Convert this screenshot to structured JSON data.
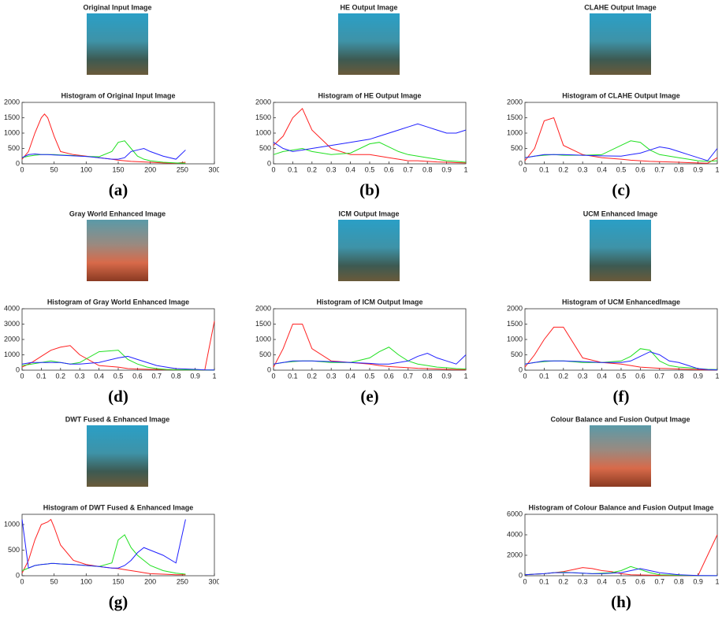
{
  "chart_data": [
    {
      "type": "line",
      "image_title": "Original Input Image",
      "title": "Histogram of Original Input Image",
      "label": "(a)",
      "x": [
        0,
        10,
        20,
        30,
        35,
        40,
        50,
        60,
        80,
        100,
        120,
        140,
        150,
        160,
        170,
        180,
        190,
        200,
        220,
        240,
        255
      ],
      "xlim": [
        0,
        300
      ],
      "xticks": [
        0,
        50,
        100,
        150,
        200,
        250,
        300
      ],
      "ylim": [
        0,
        2000
      ],
      "yticks": [
        0,
        500,
        1000,
        1500,
        2000
      ],
      "series": [
        {
          "color": "#ff2020",
          "values": [
            150,
            400,
            1000,
            1500,
            1620,
            1500,
            900,
            400,
            300,
            250,
            200,
            150,
            120,
            100,
            80,
            70,
            60,
            50,
            30,
            20,
            50
          ]
        },
        {
          "color": "#20e020",
          "values": [
            200,
            250,
            280,
            300,
            300,
            300,
            300,
            290,
            270,
            240,
            230,
            400,
            700,
            750,
            500,
            250,
            150,
            100,
            50,
            30,
            20
          ]
        },
        {
          "color": "#2020ff",
          "values": [
            200,
            300,
            320,
            300,
            300,
            300,
            290,
            280,
            260,
            240,
            200,
            150,
            150,
            200,
            400,
            450,
            500,
            400,
            250,
            150,
            450
          ]
        }
      ]
    },
    {
      "type": "line",
      "image_title": "HE Output Image",
      "title": "Histogram of HE Output Image",
      "label": "(b)",
      "x": [
        0,
        0.05,
        0.1,
        0.15,
        0.2,
        0.3,
        0.4,
        0.5,
        0.55,
        0.6,
        0.65,
        0.7,
        0.75,
        0.8,
        0.85,
        0.9,
        0.95,
        1
      ],
      "xlim": [
        0,
        1
      ],
      "xticks": [
        0,
        0.1,
        0.2,
        0.3,
        0.4,
        0.5,
        0.6,
        0.7,
        0.8,
        0.9,
        1
      ],
      "ylim": [
        0,
        2000
      ],
      "yticks": [
        0,
        500,
        1000,
        1500,
        2000
      ],
      "series": [
        {
          "color": "#ff2020",
          "values": [
            600,
            900,
            1500,
            1800,
            1100,
            500,
            300,
            300,
            250,
            200,
            150,
            100,
            100,
            80,
            60,
            50,
            40,
            30
          ]
        },
        {
          "color": "#20e020",
          "values": [
            300,
            400,
            450,
            500,
            400,
            300,
            350,
            650,
            700,
            550,
            400,
            300,
            250,
            200,
            150,
            100,
            80,
            50
          ]
        },
        {
          "color": "#2020ff",
          "values": [
            700,
            500,
            400,
            450,
            500,
            600,
            700,
            800,
            900,
            1000,
            1100,
            1200,
            1300,
            1200,
            1100,
            1000,
            1000,
            1100
          ]
        }
      ]
    },
    {
      "type": "line",
      "image_title": "CLAHE Output Image",
      "title": "Histogram of CLAHE Output Image",
      "label": "(c)",
      "x": [
        0,
        0.05,
        0.1,
        0.15,
        0.2,
        0.3,
        0.4,
        0.5,
        0.55,
        0.6,
        0.65,
        0.7,
        0.75,
        0.8,
        0.85,
        0.9,
        0.95,
        1
      ],
      "xlim": [
        0,
        1
      ],
      "xticks": [
        0,
        0.1,
        0.2,
        0.3,
        0.4,
        0.5,
        0.6,
        0.7,
        0.8,
        0.9,
        1
      ],
      "ylim": [
        0,
        2000
      ],
      "yticks": [
        0,
        500,
        1000,
        1500,
        2000
      ],
      "series": [
        {
          "color": "#ff2020",
          "values": [
            100,
            500,
            1400,
            1500,
            600,
            300,
            200,
            150,
            120,
            100,
            80,
            70,
            60,
            50,
            40,
            30,
            20,
            200
          ]
        },
        {
          "color": "#20e020",
          "values": [
            200,
            250,
            280,
            300,
            280,
            280,
            300,
            600,
            750,
            700,
            450,
            300,
            250,
            200,
            150,
            100,
            80,
            100
          ]
        },
        {
          "color": "#2020ff",
          "values": [
            200,
            250,
            300,
            300,
            300,
            280,
            260,
            250,
            300,
            350,
            450,
            550,
            500,
            400,
            300,
            200,
            100,
            500
          ]
        }
      ]
    },
    {
      "type": "line",
      "image_title": "Gray World Enhanced Image",
      "title": "Histogram of Gray World Enhanced Image",
      "label": "(d)",
      "x": [
        0,
        0.05,
        0.1,
        0.15,
        0.2,
        0.25,
        0.3,
        0.4,
        0.5,
        0.55,
        0.6,
        0.65,
        0.7,
        0.75,
        0.8,
        0.9,
        0.95,
        1
      ],
      "xlim": [
        0,
        1
      ],
      "xticks": [
        0,
        0.1,
        0.2,
        0.3,
        0.4,
        0.5,
        0.6,
        0.7,
        0.8,
        0.9,
        1
      ],
      "ylim": [
        0,
        4000
      ],
      "yticks": [
        0,
        1000,
        2000,
        3000,
        4000
      ],
      "series": [
        {
          "color": "#ff2020",
          "values": [
            200,
            500,
            900,
            1300,
            1500,
            1600,
            1000,
            300,
            200,
            100,
            80,
            60,
            50,
            40,
            30,
            20,
            10,
            3200
          ]
        },
        {
          "color": "#20e020",
          "values": [
            300,
            400,
            500,
            600,
            500,
            400,
            500,
            1200,
            1300,
            700,
            400,
            200,
            100,
            50,
            30,
            20,
            10,
            10
          ]
        },
        {
          "color": "#2020ff",
          "values": [
            400,
            500,
            500,
            500,
            500,
            400,
            400,
            500,
            800,
            900,
            700,
            500,
            300,
            200,
            100,
            50,
            20,
            10
          ]
        }
      ]
    },
    {
      "type": "line",
      "image_title": "ICM Output Image",
      "title": "Histogram of ICM Output Image",
      "label": "(e)",
      "x": [
        0,
        0.05,
        0.1,
        0.15,
        0.2,
        0.3,
        0.4,
        0.5,
        0.55,
        0.6,
        0.65,
        0.7,
        0.75,
        0.8,
        0.85,
        0.9,
        0.95,
        1
      ],
      "xlim": [
        0,
        1
      ],
      "xticks": [
        0,
        0.1,
        0.2,
        0.3,
        0.4,
        0.5,
        0.6,
        0.7,
        0.8,
        0.9,
        1
      ],
      "ylim": [
        0,
        2000
      ],
      "yticks": [
        0,
        500,
        1000,
        1500,
        2000
      ],
      "series": [
        {
          "color": "#ff2020",
          "values": [
            100,
            700,
            1500,
            1500,
            700,
            300,
            250,
            200,
            150,
            120,
            100,
            80,
            60,
            50,
            40,
            30,
            20,
            20
          ]
        },
        {
          "color": "#20e020",
          "values": [
            200,
            250,
            280,
            300,
            300,
            250,
            250,
            400,
            600,
            750,
            500,
            300,
            200,
            150,
            100,
            80,
            50,
            40
          ]
        },
        {
          "color": "#2020ff",
          "values": [
            200,
            250,
            300,
            300,
            300,
            280,
            250,
            220,
            200,
            200,
            250,
            300,
            450,
            550,
            400,
            300,
            200,
            500
          ]
        }
      ]
    },
    {
      "type": "line",
      "image_title": "UCM Enhanced Image",
      "title": "Histogram of UCM EnhancedImage",
      "label": "(f)",
      "x": [
        0,
        0.05,
        0.1,
        0.15,
        0.2,
        0.3,
        0.4,
        0.5,
        0.55,
        0.6,
        0.65,
        0.7,
        0.75,
        0.8,
        0.85,
        0.9,
        0.95,
        1
      ],
      "xlim": [
        0,
        1
      ],
      "xticks": [
        0,
        0.1,
        0.2,
        0.3,
        0.4,
        0.5,
        0.6,
        0.7,
        0.8,
        0.9,
        1
      ],
      "ylim": [
        0,
        2000
      ],
      "yticks": [
        0,
        500,
        1000,
        1500,
        2000
      ],
      "series": [
        {
          "color": "#ff2020",
          "values": [
            100,
            500,
            1000,
            1400,
            1400,
            400,
            250,
            200,
            150,
            100,
            80,
            60,
            50,
            40,
            30,
            20,
            10,
            10
          ]
        },
        {
          "color": "#20e020",
          "values": [
            200,
            250,
            280,
            300,
            300,
            250,
            250,
            300,
            450,
            700,
            650,
            300,
            150,
            100,
            80,
            50,
            30,
            20
          ]
        },
        {
          "color": "#2020ff",
          "values": [
            200,
            250,
            300,
            300,
            300,
            280,
            250,
            250,
            300,
            450,
            600,
            500,
            300,
            250,
            150,
            50,
            20,
            10
          ]
        }
      ]
    },
    {
      "type": "line",
      "image_title": "DWT Fused & Enhanced Image",
      "title": "Histogram of DWT Fused & Enhanced Image",
      "label": "(g)",
      "x": [
        0,
        10,
        20,
        30,
        40,
        45,
        50,
        60,
        80,
        100,
        120,
        140,
        150,
        160,
        170,
        180,
        190,
        200,
        220,
        240,
        255
      ],
      "xlim": [
        0,
        300
      ],
      "xticks": [
        0,
        50,
        100,
        150,
        200,
        250,
        300
      ],
      "ylim": [
        0,
        1200
      ],
      "yticks": [
        0,
        500,
        1000
      ],
      "series": [
        {
          "color": "#ff2020",
          "values": [
            50,
            300,
            700,
            1000,
            1050,
            1100,
            950,
            600,
            300,
            220,
            180,
            150,
            140,
            120,
            100,
            80,
            60,
            40,
            30,
            20,
            20
          ]
        },
        {
          "color": "#20e020",
          "values": [
            100,
            150,
            200,
            220,
            230,
            240,
            240,
            230,
            220,
            200,
            180,
            250,
            700,
            800,
            550,
            400,
            300,
            200,
            100,
            50,
            30
          ]
        },
        {
          "color": "#2020ff",
          "values": [
            1100,
            150,
            200,
            220,
            230,
            240,
            240,
            230,
            220,
            200,
            180,
            150,
            150,
            200,
            300,
            450,
            550,
            500,
            400,
            250,
            1100
          ]
        }
      ]
    },
    {
      "type": "line",
      "image_title": "Colour Balance and Fusion Output Image",
      "title": "Histogram of Colour Balance and Fusion Output Image",
      "label": "(h)",
      "x": [
        0,
        0.05,
        0.1,
        0.15,
        0.2,
        0.25,
        0.3,
        0.35,
        0.4,
        0.45,
        0.5,
        0.55,
        0.6,
        0.65,
        0.7,
        0.8,
        0.9,
        1
      ],
      "xlim": [
        0,
        1
      ],
      "xticks": [
        0,
        0.1,
        0.2,
        0.3,
        0.4,
        0.5,
        0.6,
        0.7,
        0.8,
        0.9,
        1
      ],
      "ylim": [
        0,
        6000
      ],
      "yticks": [
        0,
        2000,
        4000,
        6000
      ],
      "series": [
        {
          "color": "#ff2020",
          "values": [
            100,
            150,
            200,
            300,
            400,
            600,
            800,
            700,
            500,
            400,
            200,
            100,
            80,
            60,
            40,
            30,
            20,
            4000
          ]
        },
        {
          "color": "#20e020",
          "values": [
            100,
            150,
            200,
            300,
            350,
            300,
            250,
            200,
            250,
            300,
            500,
            900,
            600,
            300,
            100,
            50,
            10,
            10
          ]
        },
        {
          "color": "#2020ff",
          "values": [
            100,
            150,
            200,
            300,
            300,
            300,
            250,
            200,
            200,
            250,
            300,
            500,
            700,
            500,
            300,
            100,
            20,
            10
          ]
        }
      ]
    }
  ]
}
